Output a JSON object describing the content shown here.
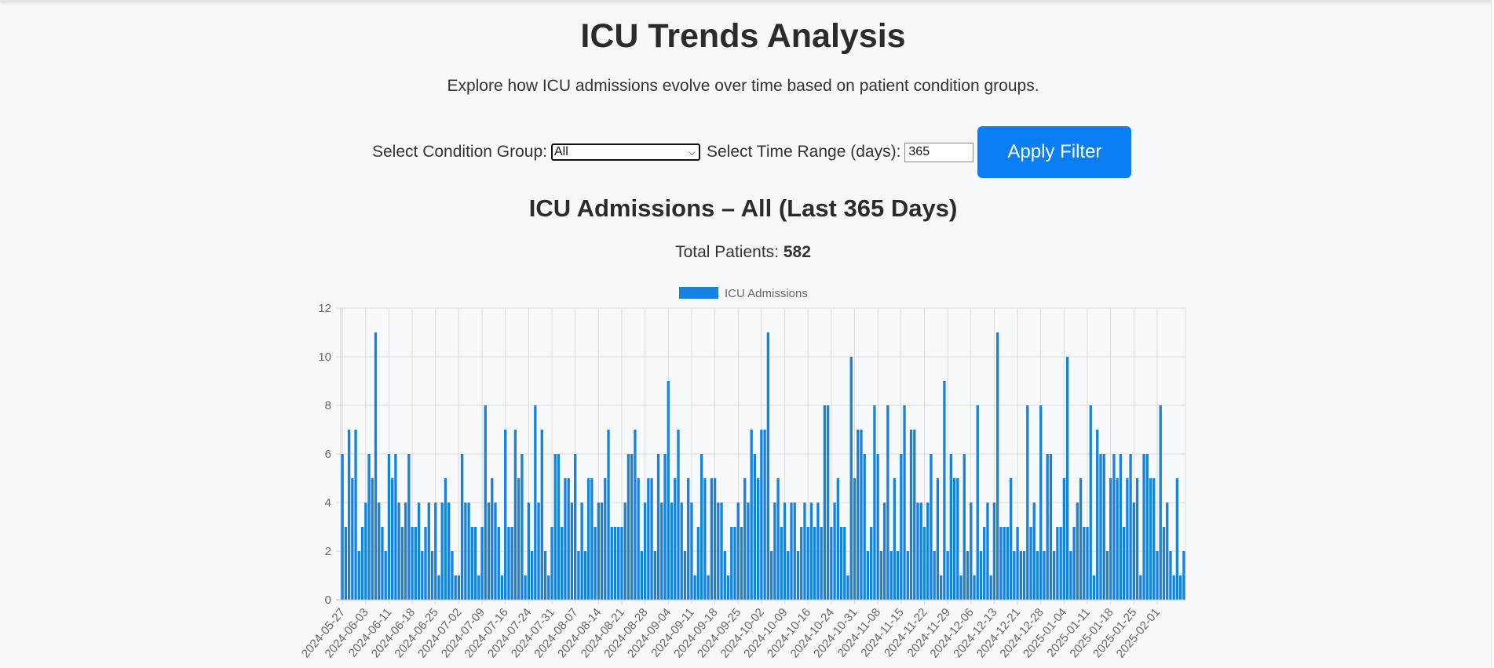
{
  "page": {
    "title": "ICU Trends Analysis",
    "subtitle": "Explore how ICU admissions evolve over time based on patient condition groups."
  },
  "filters": {
    "group_label": "Select Condition Group:",
    "group_value": "All",
    "range_label": "Select Time Range (days):",
    "range_value": "365",
    "apply_label": "Apply Filter"
  },
  "summary": {
    "heading": "ICU Admissions – All (Last 365 Days)",
    "total_label": "Total Patients:",
    "total_value": "582"
  },
  "colors": {
    "bar": "#1582e0",
    "accent": "#0a7ef5"
  },
  "chart_data": {
    "type": "bar",
    "legend": "ICU Admissions",
    "legend_position": "top-center",
    "grid": true,
    "ylim": [
      0,
      12
    ],
    "y_ticks": [
      0,
      2,
      4,
      6,
      8,
      10,
      12
    ],
    "x_tick_labels": [
      "2024-05-27",
      "2024-06-03",
      "2024-06-11",
      "2024-06-18",
      "2024-06-25",
      "2024-07-02",
      "2024-07-09",
      "2024-07-16",
      "2024-07-24",
      "2024-07-31",
      "2024-08-07",
      "2024-08-14",
      "2024-08-21",
      "2024-08-28",
      "2024-09-04",
      "2024-09-11",
      "2024-09-18",
      "2024-09-25",
      "2024-10-02",
      "2024-10-09",
      "2024-10-16",
      "2024-10-24",
      "2024-10-31",
      "2024-11-08",
      "2024-11-15",
      "2024-11-22",
      "2024-11-29",
      "2024-12-06",
      "2024-12-13",
      "2024-12-21",
      "2024-12-28",
      "2025-01-04",
      "2025-01-11",
      "2025-01-18",
      "2025-01-25",
      "2025-02-01"
    ],
    "values": [
      6,
      3,
      7,
      5,
      7,
      2,
      3,
      4,
      6,
      5,
      11,
      4,
      3,
      2,
      6,
      5,
      6,
      4,
      3,
      4,
      6,
      3,
      3,
      4,
      2,
      3,
      4,
      2,
      4,
      1,
      4,
      5,
      4,
      2,
      1,
      1,
      6,
      4,
      4,
      3,
      3,
      1,
      3,
      8,
      4,
      5,
      4,
      3,
      1,
      7,
      3,
      3,
      7,
      5,
      6,
      1,
      4,
      2,
      8,
      4,
      7,
      2,
      1,
      3,
      6,
      6,
      3,
      5,
      5,
      4,
      6,
      2,
      4,
      2,
      5,
      5,
      3,
      4,
      4,
      5,
      7,
      3,
      3,
      3,
      3,
      4,
      6,
      6,
      7,
      5,
      2,
      4,
      5,
      5,
      2,
      6,
      4,
      6,
      9,
      4,
      5,
      7,
      4,
      2,
      5,
      4,
      1,
      3,
      6,
      5,
      1,
      5,
      5,
      4,
      4,
      2,
      1,
      3,
      3,
      4,
      3,
      5,
      4,
      7,
      6,
      5,
      7,
      7,
      11,
      2,
      4,
      5,
      3,
      4,
      2,
      4,
      4,
      2,
      3,
      4,
      3,
      4,
      3,
      4,
      3,
      8,
      8,
      3,
      4,
      5,
      3,
      3,
      1,
      10,
      5,
      7,
      7,
      6,
      2,
      3,
      8,
      6,
      2,
      4,
      8,
      2,
      5,
      2,
      6,
      8,
      2,
      7,
      7,
      4,
      4,
      3,
      4,
      6,
      2,
      5,
      1,
      9,
      2,
      6,
      5,
      5,
      1,
      6,
      2,
      4,
      1,
      8,
      2,
      3,
      4,
      1,
      4,
      11,
      3,
      3,
      3,
      5,
      2,
      3,
      2,
      2,
      8,
      3,
      4,
      2,
      8,
      2,
      6,
      6,
      2,
      3,
      3,
      5,
      10,
      2,
      3,
      4,
      5,
      3,
      3,
      8,
      1,
      7,
      6,
      6,
      2,
      5,
      6,
      5,
      6,
      3,
      5,
      6,
      4,
      5,
      1,
      6,
      6,
      5,
      5,
      2,
      8,
      3,
      4,
      2,
      1,
      5,
      1,
      2
    ]
  }
}
